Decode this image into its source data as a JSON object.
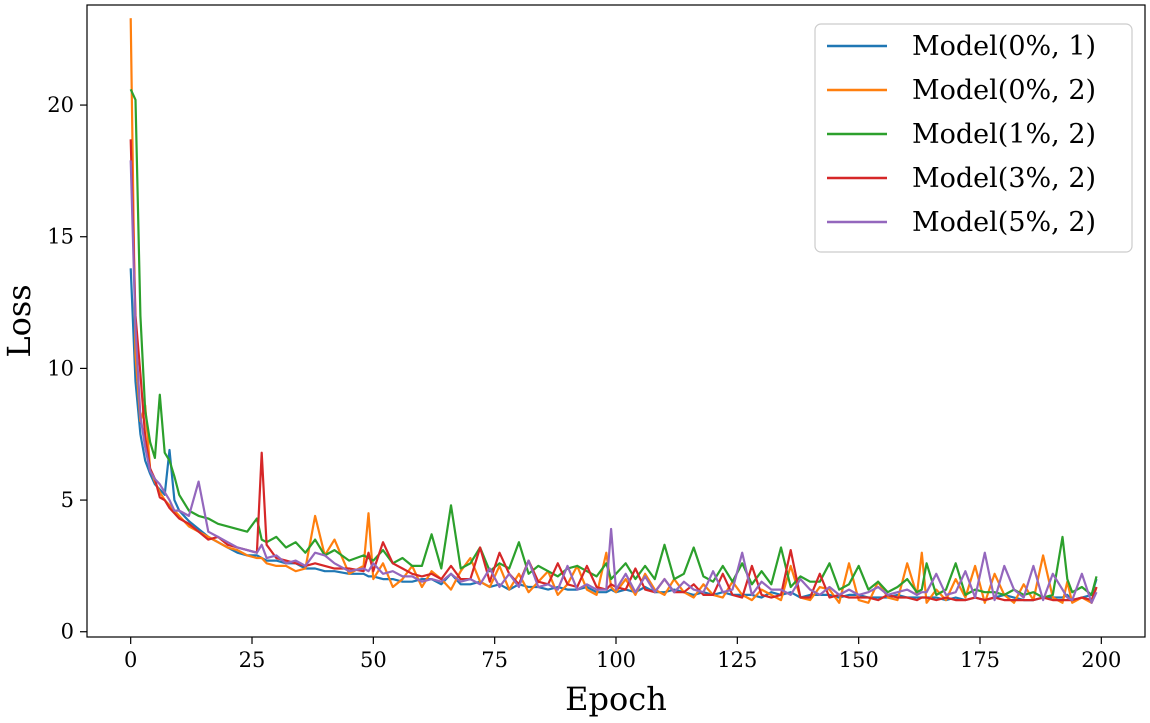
{
  "chart_data": {
    "type": "line",
    "title": "",
    "xlabel": "Epoch",
    "ylabel": "Loss",
    "xlim": [
      -9,
      209
    ],
    "ylim": [
      -0.2,
      23.8
    ],
    "xticks": [
      0,
      25,
      50,
      75,
      100,
      125,
      150,
      175,
      200
    ],
    "yticks": [
      0,
      5,
      10,
      15,
      20
    ],
    "grid": false,
    "legend_position": "top-right",
    "x": [
      0,
      1,
      2,
      3,
      4,
      5,
      6,
      7,
      8,
      9,
      10,
      12,
      14,
      16,
      18,
      20,
      22,
      24,
      26,
      27,
      28,
      30,
      32,
      34,
      36,
      38,
      40,
      42,
      45,
      48,
      49,
      50,
      52,
      54,
      56,
      58,
      60,
      62,
      64,
      66,
      68,
      70,
      72,
      74,
      76,
      78,
      80,
      82,
      84,
      86,
      88,
      90,
      92,
      94,
      96,
      98,
      99,
      100,
      102,
      104,
      106,
      108,
      110,
      112,
      114,
      116,
      118,
      120,
      122,
      124,
      126,
      128,
      130,
      132,
      134,
      136,
      138,
      140,
      142,
      144,
      146,
      148,
      150,
      152,
      154,
      156,
      158,
      160,
      162,
      163,
      164,
      166,
      168,
      170,
      172,
      174,
      176,
      178,
      180,
      182,
      184,
      186,
      188,
      190,
      192,
      193,
      194,
      196,
      198,
      199
    ],
    "series": [
      {
        "name": "Model(0%, 1)",
        "color": "#1f77b4",
        "values": [
          13.8,
          9.5,
          7.5,
          6.5,
          6.0,
          5.6,
          5.4,
          5.2,
          6.9,
          5.0,
          4.6,
          4.2,
          3.9,
          3.6,
          3.4,
          3.2,
          3.0,
          2.9,
          2.9,
          2.8,
          2.7,
          2.7,
          2.6,
          2.6,
          2.4,
          2.4,
          2.3,
          2.3,
          2.2,
          2.2,
          2.1,
          2.1,
          2.0,
          2.0,
          1.9,
          1.9,
          2.0,
          2.0,
          1.8,
          2.2,
          1.8,
          1.8,
          1.9,
          1.7,
          1.8,
          1.6,
          1.8,
          1.7,
          1.7,
          1.6,
          1.7,
          1.6,
          1.6,
          1.7,
          1.5,
          1.5,
          1.6,
          1.5,
          1.6,
          1.5,
          1.7,
          1.5,
          1.5,
          1.6,
          1.5,
          1.4,
          1.5,
          1.4,
          1.5,
          1.4,
          1.4,
          1.4,
          1.3,
          1.5,
          1.4,
          1.5,
          1.3,
          1.4,
          1.4,
          1.4,
          1.3,
          1.4,
          1.4,
          1.3,
          1.3,
          1.3,
          1.4,
          1.3,
          1.3,
          1.3,
          1.3,
          1.3,
          1.2,
          1.3,
          1.2,
          1.3,
          1.2,
          1.3,
          1.4,
          1.3,
          1.2,
          1.2,
          1.3,
          1.3,
          1.3,
          1.4,
          1.2,
          1.3,
          1.4,
          2.0
        ]
      },
      {
        "name": "Model(0%, 2)",
        "color": "#ff7f0e",
        "values": [
          23.3,
          10.5,
          8.0,
          8.6,
          6.2,
          5.7,
          5.3,
          5.0,
          4.8,
          4.6,
          4.4,
          4.0,
          3.8,
          3.6,
          3.4,
          3.2,
          3.1,
          2.9,
          2.8,
          2.8,
          2.6,
          2.5,
          2.5,
          2.3,
          2.4,
          4.4,
          2.9,
          3.5,
          2.2,
          2.5,
          4.5,
          2.0,
          2.6,
          1.7,
          2.0,
          2.5,
          1.7,
          2.3,
          2.0,
          1.6,
          2.3,
          2.8,
          1.9,
          1.7,
          2.5,
          1.6,
          2.2,
          1.5,
          1.9,
          2.3,
          1.4,
          1.8,
          2.5,
          1.6,
          1.4,
          3.0,
          1.7,
          1.5,
          2.0,
          1.4,
          2.2,
          1.6,
          1.4,
          2.0,
          1.5,
          1.3,
          1.8,
          1.4,
          1.3,
          1.9,
          1.4,
          1.2,
          1.6,
          1.4,
          1.2,
          2.5,
          1.3,
          1.2,
          1.7,
          1.6,
          1.1,
          2.6,
          1.2,
          1.1,
          1.9,
          1.3,
          1.2,
          2.6,
          1.4,
          3.0,
          1.1,
          1.6,
          1.2,
          2.0,
          1.3,
          2.5,
          1.1,
          2.2,
          1.4,
          1.1,
          1.8,
          1.2,
          2.9,
          1.3,
          1.1,
          1.9,
          1.1,
          1.3,
          1.1,
          1.7
        ]
      },
      {
        "name": "Model(1%, 2)",
        "color": "#2ca02c",
        "values": [
          20.6,
          20.2,
          12.0,
          8.4,
          7.2,
          6.6,
          9.0,
          6.8,
          6.5,
          5.9,
          5.2,
          4.6,
          4.4,
          4.3,
          4.1,
          4.0,
          3.9,
          3.8,
          4.3,
          3.5,
          3.4,
          3.6,
          3.2,
          3.4,
          3.0,
          3.5,
          2.9,
          3.1,
          2.7,
          2.9,
          2.8,
          2.7,
          3.1,
          2.6,
          2.8,
          2.5,
          2.5,
          3.7,
          2.4,
          4.8,
          2.4,
          2.6,
          3.2,
          2.3,
          2.6,
          2.4,
          3.4,
          2.2,
          2.5,
          2.3,
          2.1,
          2.4,
          2.5,
          2.3,
          2.1,
          2.6,
          2.0,
          2.2,
          2.6,
          2.0,
          2.5,
          2.0,
          3.3,
          2.0,
          2.2,
          3.2,
          2.1,
          1.9,
          2.5,
          1.9,
          2.6,
          1.8,
          2.3,
          1.8,
          3.2,
          1.7,
          2.1,
          1.9,
          1.9,
          2.6,
          1.6,
          1.8,
          2.5,
          1.6,
          1.9,
          1.5,
          1.7,
          2.0,
          1.5,
          1.6,
          2.6,
          1.4,
          1.6,
          2.6,
          1.4,
          1.6,
          1.5,
          1.5,
          1.4,
          1.6,
          1.4,
          1.5,
          1.3,
          1.4,
          3.6,
          2.0,
          1.5,
          1.7,
          1.4,
          2.1
        ]
      },
      {
        "name": "Model(3%, 2)",
        "color": "#d62728",
        "values": [
          18.7,
          12.0,
          9.8,
          7.4,
          6.2,
          5.8,
          5.1,
          5.0,
          4.7,
          4.5,
          4.3,
          4.1,
          3.8,
          3.5,
          3.6,
          3.3,
          3.2,
          3.1,
          3.0,
          6.8,
          3.3,
          2.8,
          2.7,
          2.6,
          2.5,
          2.6,
          2.5,
          2.4,
          2.4,
          2.3,
          3.0,
          2.3,
          3.4,
          2.6,
          2.4,
          2.2,
          2.1,
          2.2,
          2.0,
          2.5,
          2.0,
          2.0,
          3.2,
          1.9,
          3.0,
          2.2,
          1.8,
          2.7,
          1.9,
          1.8,
          2.6,
          1.8,
          1.7,
          2.5,
          1.7,
          1.6,
          1.8,
          1.7,
          1.6,
          2.4,
          1.6,
          1.5,
          2.0,
          1.5,
          1.5,
          1.8,
          1.4,
          1.4,
          2.2,
          1.4,
          1.3,
          2.5,
          1.4,
          1.3,
          1.4,
          3.1,
          1.3,
          1.3,
          2.2,
          1.3,
          1.4,
          1.3,
          1.3,
          1.3,
          1.2,
          1.4,
          1.3,
          1.3,
          1.2,
          1.3,
          1.3,
          1.2,
          1.3,
          1.2,
          1.2,
          1.3,
          1.2,
          1.3,
          1.2,
          1.2,
          1.2,
          1.2,
          1.3,
          1.2,
          1.2,
          1.2,
          1.2,
          1.3,
          1.2,
          1.7
        ]
      },
      {
        "name": "Model(5%, 2)",
        "color": "#9467bd",
        "values": [
          17.9,
          11.5,
          8.2,
          7.0,
          6.1,
          5.8,
          5.6,
          5.3,
          5.0,
          4.6,
          4.6,
          4.4,
          5.7,
          3.8,
          3.6,
          3.4,
          3.2,
          3.1,
          3.0,
          3.3,
          2.8,
          2.9,
          2.6,
          2.7,
          2.5,
          3.0,
          2.9,
          2.6,
          2.3,
          2.4,
          2.3,
          2.6,
          2.2,
          2.3,
          2.1,
          2.1,
          1.9,
          2.0,
          1.9,
          2.2,
          1.9,
          2.0,
          1.8,
          2.4,
          1.7,
          2.2,
          1.7,
          2.7,
          1.7,
          1.8,
          1.6,
          2.5,
          1.6,
          1.8,
          1.6,
          1.6,
          3.9,
          1.6,
          2.2,
          1.5,
          2.1,
          1.5,
          2.0,
          1.5,
          1.9,
          1.6,
          1.5,
          2.3,
          1.5,
          1.6,
          3.0,
          1.4,
          1.9,
          1.6,
          1.6,
          1.4,
          2.0,
          1.6,
          1.4,
          1.7,
          1.4,
          1.6,
          1.4,
          1.5,
          1.7,
          1.4,
          1.5,
          1.6,
          1.4,
          1.5,
          1.5,
          2.2,
          1.4,
          1.5,
          2.3,
          1.3,
          3.0,
          1.2,
          2.5,
          1.6,
          1.3,
          2.5,
          1.2,
          2.2,
          1.6,
          1.3,
          1.2,
          2.2,
          1.1,
          1.5
        ]
      }
    ]
  }
}
